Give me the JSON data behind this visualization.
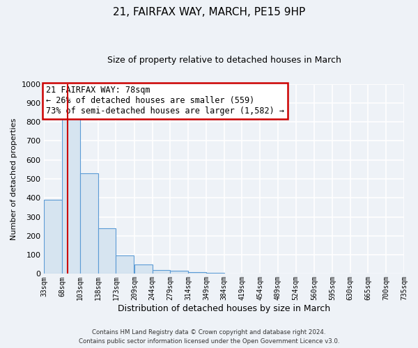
{
  "title": "21, FAIRFAX WAY, MARCH, PE15 9HP",
  "subtitle": "Size of property relative to detached houses in March",
  "xlabel": "Distribution of detached houses by size in March",
  "ylabel": "Number of detached properties",
  "bar_color": "#d6e4f0",
  "bar_edge_color": "#5b9bd5",
  "property_line_x": 78,
  "property_line_color": "#cc0000",
  "annotation_title": "21 FAIRFAX WAY: 78sqm",
  "annotation_line1": "← 26% of detached houses are smaller (559)",
  "annotation_line2": "73% of semi-detached houses are larger (1,582) →",
  "annotation_box_color": "#ffffff",
  "annotation_box_edge": "#cc0000",
  "bins_left_edges": [
    33,
    68,
    103,
    138,
    173,
    209,
    244,
    279,
    314,
    349,
    384,
    419,
    454,
    489,
    524,
    560,
    595,
    630,
    665,
    700
  ],
  "bin_width": 35,
  "bar_heights": [
    390,
    830,
    530,
    240,
    95,
    50,
    20,
    15,
    10,
    5,
    0,
    0,
    0,
    0,
    0,
    0,
    0,
    0,
    0,
    0
  ],
  "xlim_left": 33,
  "xlim_right": 735,
  "ylim_top": 1000,
  "ylim_bottom": 0,
  "yticks": [
    0,
    100,
    200,
    300,
    400,
    500,
    600,
    700,
    800,
    900,
    1000
  ],
  "xtick_labels": [
    "33sqm",
    "68sqm",
    "103sqm",
    "138sqm",
    "173sqm",
    "209sqm",
    "244sqm",
    "279sqm",
    "314sqm",
    "349sqm",
    "384sqm",
    "419sqm",
    "454sqm",
    "489sqm",
    "524sqm",
    "560sqm",
    "595sqm",
    "630sqm",
    "665sqm",
    "700sqm",
    "735sqm"
  ],
  "footer_line1": "Contains HM Land Registry data © Crown copyright and database right 2024.",
  "footer_line2": "Contains public sector information licensed under the Open Government Licence v3.0.",
  "background_color": "#eef2f7",
  "plot_background_color": "#eef2f7",
  "grid_color": "#ffffff"
}
